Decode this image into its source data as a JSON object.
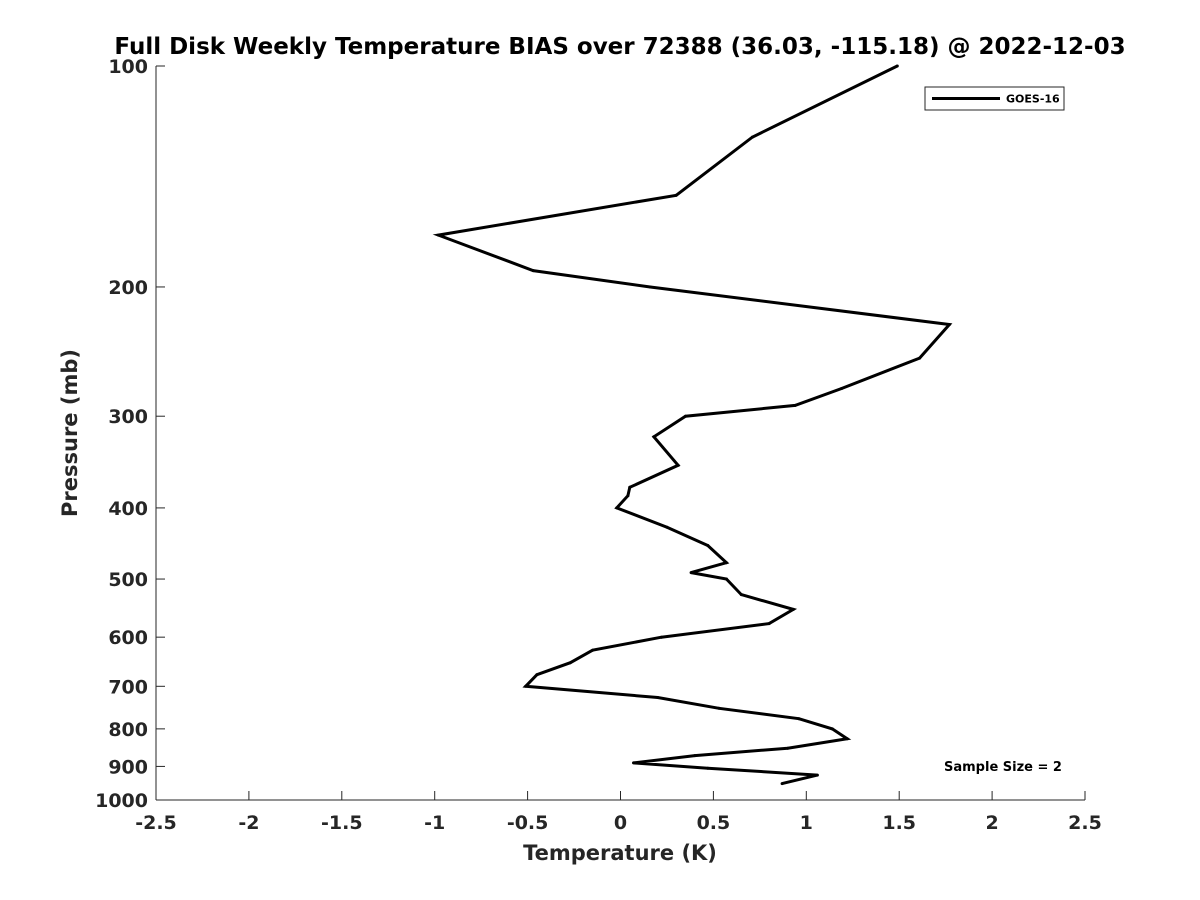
{
  "chart_data": {
    "type": "line",
    "title": "Full Disk Weekly Temperature BIAS over 72388 (36.03, -115.18) @ 2022-12-03",
    "xlabel": "Temperature (K)",
    "ylabel": "Pressure (mb)",
    "xlim": [
      -2.5,
      2.5
    ],
    "ylim": [
      100,
      1000
    ],
    "y_scale": "log",
    "y_reversed": true,
    "x_ticks": [
      -2.5,
      -2,
      -1.5,
      -1,
      -0.5,
      0,
      0.5,
      1,
      1.5,
      2,
      2.5
    ],
    "x_tick_labels": [
      "-2.5",
      "-2",
      "-1.5",
      "-1",
      "-0.5",
      "0",
      "0.5",
      "1",
      "1.5",
      "2",
      "2.5"
    ],
    "y_ticks": [
      100,
      200,
      300,
      400,
      500,
      600,
      700,
      800,
      900,
      1000
    ],
    "y_tick_labels": [
      "100",
      "200",
      "300",
      "400",
      "500",
      "600",
      "700",
      "800",
      "900",
      "1000"
    ],
    "grid": false,
    "legend_position": "top-right",
    "series": [
      {
        "name": "GOES-16",
        "color": "#000000",
        "points": [
          {
            "x": 1.49,
            "p": 100
          },
          {
            "x": 0.71,
            "p": 125
          },
          {
            "x": 0.3,
            "p": 150
          },
          {
            "x": -0.98,
            "p": 170
          },
          {
            "x": -0.47,
            "p": 190
          },
          {
            "x": 0.16,
            "p": 200
          },
          {
            "x": 1.77,
            "p": 225
          },
          {
            "x": 1.61,
            "p": 250
          },
          {
            "x": 1.19,
            "p": 275
          },
          {
            "x": 0.94,
            "p": 290
          },
          {
            "x": 0.35,
            "p": 300
          },
          {
            "x": 0.18,
            "p": 320
          },
          {
            "x": 0.31,
            "p": 350
          },
          {
            "x": 0.05,
            "p": 375
          },
          {
            "x": 0.04,
            "p": 385
          },
          {
            "x": -0.02,
            "p": 400
          },
          {
            "x": 0.25,
            "p": 425
          },
          {
            "x": 0.47,
            "p": 450
          },
          {
            "x": 0.57,
            "p": 475
          },
          {
            "x": 0.38,
            "p": 490
          },
          {
            "x": 0.57,
            "p": 500
          },
          {
            "x": 0.65,
            "p": 525
          },
          {
            "x": 0.93,
            "p": 550
          },
          {
            "x": 0.8,
            "p": 575
          },
          {
            "x": 0.22,
            "p": 600
          },
          {
            "x": -0.15,
            "p": 625
          },
          {
            "x": -0.27,
            "p": 650
          },
          {
            "x": -0.45,
            "p": 675
          },
          {
            "x": -0.51,
            "p": 700
          },
          {
            "x": 0.2,
            "p": 725
          },
          {
            "x": 0.53,
            "p": 750
          },
          {
            "x": 0.96,
            "p": 775
          },
          {
            "x": 1.14,
            "p": 800
          },
          {
            "x": 1.22,
            "p": 825
          },
          {
            "x": 0.9,
            "p": 850
          },
          {
            "x": 0.4,
            "p": 870
          },
          {
            "x": 0.07,
            "p": 890
          },
          {
            "x": 0.47,
            "p": 905
          },
          {
            "x": 1.06,
            "p": 925
          },
          {
            "x": 0.87,
            "p": 950
          }
        ]
      }
    ],
    "annotations": [
      {
        "text": "Sample Size = 2",
        "position": "bottom-right"
      }
    ]
  }
}
